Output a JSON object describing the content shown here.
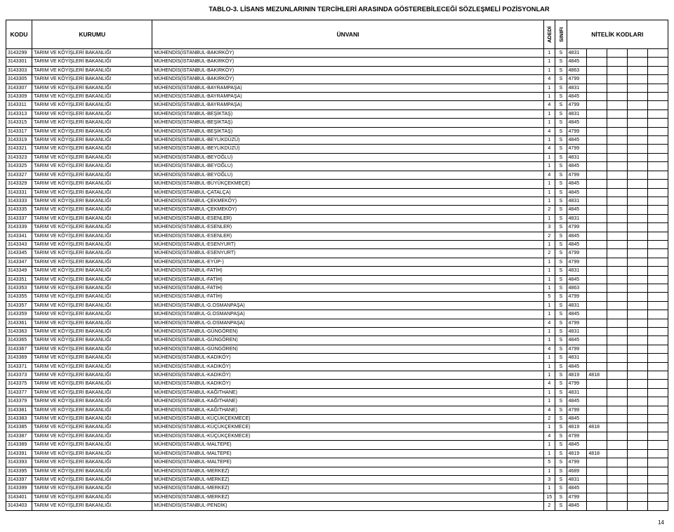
{
  "title": "TABLO-3. LİSANS MEZUNLARININ TERCİHLERİ ARASINDA GÖSTEREBİLECEĞİ SÖZLEŞMELİ POZİSYONLAR",
  "headers": {
    "kodu": "KODU",
    "kurumu": "KURUMU",
    "unvani": "ÜNVANI",
    "adedi": "ADEDİ",
    "sinifi": "SINIFI",
    "nitelik": "NİTELİK KODLARI"
  },
  "page_number": "14",
  "columns_align": [
    "left",
    "left",
    "left",
    "center",
    "center",
    "left",
    "left",
    "left",
    "left",
    "left"
  ],
  "rows": [
    [
      "3143299",
      "TARIM VE KÖYİŞLERİ BAKANLIĞI",
      "MÜHENDİS(İSTANBUL-BAKIRKÖY)",
      "1",
      "S",
      "4831",
      "",
      "",
      "",
      ""
    ],
    [
      "3143301",
      "TARIM VE KÖYİŞLERİ BAKANLIĞI",
      "MÜHENDİS(İSTANBUL-BAKIRKÖY)",
      "1",
      "S",
      "4845",
      "",
      "",
      "",
      ""
    ],
    [
      "3143303",
      "TARIM VE KÖYİŞLERİ BAKANLIĞI",
      "MÜHENDİS(İSTANBUL-BAKIRKÖY)",
      "1",
      "S",
      "4863",
      "",
      "",
      "",
      ""
    ],
    [
      "3143305",
      "TARIM VE KÖYİŞLERİ BAKANLIĞI",
      "MÜHENDİS(İSTANBUL-BAKIRKÖY)",
      "4",
      "S",
      "4799",
      "",
      "",
      "",
      ""
    ],
    [
      "3143307",
      "TARIM VE KÖYİŞLERİ BAKANLIĞI",
      "MÜHENDİS(İSTANBUL-BAYRAMPAŞA)",
      "1",
      "S",
      "4831",
      "",
      "",
      "",
      ""
    ],
    [
      "3143309",
      "TARIM VE KÖYİŞLERİ BAKANLIĞI",
      "MÜHENDİS(İSTANBUL-BAYRAMPAŞA)",
      "1",
      "S",
      "4845",
      "",
      "",
      "",
      ""
    ],
    [
      "3143311",
      "TARIM VE KÖYİŞLERİ BAKANLIĞI",
      "MÜHENDİS(İSTANBUL-BAYRAMPAŞA)",
      "4",
      "S",
      "4799",
      "",
      "",
      "",
      ""
    ],
    [
      "3143313",
      "TARIM VE KÖYİŞLERİ BAKANLIĞI",
      "MÜHENDİS(İSTANBUL-BEŞİKTAŞ)",
      "1",
      "S",
      "4831",
      "",
      "",
      "",
      ""
    ],
    [
      "3143315",
      "TARIM VE KÖYİŞLERİ BAKANLIĞI",
      "MÜHENDİS(İSTANBUL-BEŞİKTAŞ)",
      "1",
      "S",
      "4845",
      "",
      "",
      "",
      ""
    ],
    [
      "3143317",
      "TARIM VE KÖYİŞLERİ BAKANLIĞI",
      "MÜHENDİS(İSTANBUL-BEŞİKTAŞ)",
      "4",
      "S",
      "4799",
      "",
      "",
      "",
      ""
    ],
    [
      "3143319",
      "TARIM VE KÖYİŞLERİ BAKANLIĞI",
      "MÜHENDİS(İSTANBUL-BEYLİKDÜZÜ)",
      "1",
      "S",
      "4845",
      "",
      "",
      "",
      ""
    ],
    [
      "3143321",
      "TARIM VE KÖYİŞLERİ BAKANLIĞI",
      "MÜHENDİS(İSTANBUL-BEYLİKDÜZÜ)",
      "4",
      "S",
      "4799",
      "",
      "",
      "",
      ""
    ],
    [
      "3143323",
      "TARIM VE KÖYİŞLERİ BAKANLIĞI",
      "MÜHENDİS(İSTANBUL-BEYOĞLU)",
      "1",
      "S",
      "4831",
      "",
      "",
      "",
      ""
    ],
    [
      "3143325",
      "TARIM VE KÖYİŞLERİ BAKANLIĞI",
      "MÜHENDİS(İSTANBUL-BEYOĞLU)",
      "1",
      "S",
      "4845",
      "",
      "",
      "",
      ""
    ],
    [
      "3143327",
      "TARIM VE KÖYİŞLERİ BAKANLIĞI",
      "MÜHENDİS(İSTANBUL-BEYOĞLU)",
      "4",
      "S",
      "4799",
      "",
      "",
      "",
      ""
    ],
    [
      "3143329",
      "TARIM VE KÖYİŞLERİ BAKANLIĞI",
      "MÜHENDİS(İSTANBUL-BÜYÜKÇEKMEÇE)",
      "1",
      "S",
      "4845",
      "",
      "",
      "",
      ""
    ],
    [
      "3143331",
      "TARIM VE KÖYİŞLERİ BAKANLIĞI",
      "MÜHENDİS(İSTANBUL-ÇATALÇA)",
      "1",
      "S",
      "4845",
      "",
      "",
      "",
      ""
    ],
    [
      "3143333",
      "TARIM VE KÖYİŞLERİ BAKANLIĞI",
      "MÜHENDİS(İSTANBUL-ÇEKMEKÖY)",
      "1",
      "S",
      "4831",
      "",
      "",
      "",
      ""
    ],
    [
      "3143335",
      "TARIM VE KÖYİŞLERİ BAKANLIĞI",
      "MÜHENDİS(İSTANBUL-ÇEKMEKÖY)",
      "2",
      "S",
      "4845",
      "",
      "",
      "",
      ""
    ],
    [
      "3143337",
      "TARIM VE KÖYİŞLERİ BAKANLIĞI",
      "MÜHENDİS(İSTANBUL-ESENLER)",
      "1",
      "S",
      "4831",
      "",
      "",
      "",
      ""
    ],
    [
      "3143339",
      "TARIM VE KÖYİŞLERİ BAKANLIĞI",
      "MÜHENDİS(İSTANBUL-ESENLER)",
      "3",
      "S",
      "4799",
      "",
      "",
      "",
      ""
    ],
    [
      "3143341",
      "TARIM VE KÖYİŞLERİ BAKANLIĞI",
      "MÜHENDİS(İSTANBUL-ESENLER)",
      "2",
      "S",
      "4845",
      "",
      "",
      "",
      ""
    ],
    [
      "3143343",
      "TARIM VE KÖYİŞLERİ BAKANLIĞI",
      "MÜHENDİS(İSTANBUL-ESENYURT)",
      "1",
      "S",
      "4845",
      "",
      "",
      "",
      ""
    ],
    [
      "3143345",
      "TARIM VE KÖYİŞLERİ BAKANLIĞI",
      "MÜHENDİS(İSTANBUL-ESENYURT)",
      "2",
      "S",
      "4799",
      "",
      "",
      "",
      ""
    ],
    [
      "3143347",
      "TARIM VE KÖYİŞLERİ BAKANLIĞI",
      "MÜHENDİS(İSTANBUL-EYÜP-)",
      "1",
      "S",
      "4799",
      "",
      "",
      "",
      ""
    ],
    [
      "3143349",
      "TARIM VE KÖYİŞLERİ BAKANLIĞI",
      "MÜHENDİS(İSTANBUL-FATİH)",
      "1",
      "S",
      "4831",
      "",
      "",
      "",
      ""
    ],
    [
      "3143351",
      "TARIM VE KÖYİŞLERİ BAKANLIĞI",
      "MÜHENDİS(İSTANBUL-FATİH)",
      "1",
      "S",
      "4845",
      "",
      "",
      "",
      ""
    ],
    [
      "3143353",
      "TARIM VE KÖYİŞLERİ BAKANLIĞI",
      "MÜHENDİS(İSTANBUL-FATİH)",
      "1",
      "S",
      "4863",
      "",
      "",
      "",
      ""
    ],
    [
      "3143355",
      "TARIM VE KÖYİŞLERİ BAKANLIĞI",
      "MÜHENDİS(İSTANBUL-FATİH)",
      "5",
      "S",
      "4799",
      "",
      "",
      "",
      ""
    ],
    [
      "3143357",
      "TARIM VE KÖYİŞLERİ BAKANLIĞI",
      "MÜHENDİS(İSTANBUL-G.OSMANPAŞA)",
      "1",
      "S",
      "4831",
      "",
      "",
      "",
      ""
    ],
    [
      "3143359",
      "TARIM VE KÖYİŞLERİ BAKANLIĞI",
      "MÜHENDİS(İSTANBUL-G.OSMANPAŞA)",
      "1",
      "S",
      "4845",
      "",
      "",
      "",
      ""
    ],
    [
      "3143361",
      "TARIM VE KÖYİŞLERİ BAKANLIĞI",
      "MÜHENDİS(İSTANBUL-G.OSMANPAŞA)",
      "4",
      "S",
      "4799",
      "",
      "",
      "",
      ""
    ],
    [
      "3143363",
      "TARIM VE KÖYİŞLERİ BAKANLIĞI",
      "MÜHENDİS(İSTANBUL-GÜNGÖREN)",
      "1",
      "S",
      "4831",
      "",
      "",
      "",
      ""
    ],
    [
      "3143365",
      "TARIM VE KÖYİŞLERİ BAKANLIĞI",
      "MÜHENDİS(İSTANBUL-GÜNGÖREN)",
      "1",
      "S",
      "4845",
      "",
      "",
      "",
      ""
    ],
    [
      "3143367",
      "TARIM VE KÖYİŞLERİ BAKANLIĞI",
      "MÜHENDİS(İSTANBUL-GÜNGÖREN)",
      "4",
      "S",
      "4799",
      "",
      "",
      "",
      ""
    ],
    [
      "3143369",
      "TARIM VE KÖYİŞLERİ BAKANLIĞI",
      "MÜHENDİS(İSTANBUL-KADIKÖY)",
      "1",
      "S",
      "4831",
      "",
      "",
      "",
      ""
    ],
    [
      "3143371",
      "TARIM VE KÖYİŞLERİ BAKANLIĞI",
      "MÜHENDİS(İSTANBUL-KADIKÖY)",
      "1",
      "S",
      "4845",
      "",
      "",
      "",
      ""
    ],
    [
      "3143373",
      "TARIM VE KÖYİŞLERİ BAKANLIĞI",
      "MÜHENDİS(İSTANBUL-KADIKÖY)",
      "1",
      "S",
      "4819",
      "4818",
      "",
      "",
      ""
    ],
    [
      "3143375",
      "TARIM VE KÖYİŞLERİ BAKANLIĞI",
      "MÜHENDİS(İSTANBUL-KADIKÖY)",
      "4",
      "S",
      "4799",
      "",
      "",
      "",
      ""
    ],
    [
      "3143377",
      "TARIM VE KÖYİŞLERİ BAKANLIĞI",
      "MÜHENDİS(İSTANBUL-KAĞITHANE)",
      "1",
      "S",
      "4831",
      "",
      "",
      "",
      ""
    ],
    [
      "3143379",
      "TARIM VE KÖYİŞLERİ BAKANLIĞI",
      "MÜHENDİS(İSTANBUL-KAĞITHANE)",
      "1",
      "S",
      "4845",
      "",
      "",
      "",
      ""
    ],
    [
      "3143381",
      "TARIM VE KÖYİŞLERİ BAKANLIĞI",
      "MÜHENDİS(İSTANBUL-KAĞITHANE)",
      "4",
      "S",
      "4799",
      "",
      "",
      "",
      ""
    ],
    [
      "3143383",
      "TARIM VE KÖYİŞLERİ BAKANLIĞI",
      "MÜHENDİS(İSTANBUL-KÜÇÜKÇEKMECE)",
      "2",
      "S",
      "4845",
      "",
      "",
      "",
      ""
    ],
    [
      "3143385",
      "TARIM VE KÖYİŞLERİ BAKANLIĞI",
      "MÜHENDİS(İSTANBUL-KÜÇÜKÇEKMECE)",
      "1",
      "S",
      "4819",
      "4818",
      "",
      "",
      ""
    ],
    [
      "3143387",
      "TARIM VE KÖYİŞLERİ BAKANLIĞI",
      "MÜHENDİS(İSTANBUL-KÜÇÜKÇEKMECE)",
      "4",
      "S",
      "4799",
      "",
      "",
      "",
      ""
    ],
    [
      "3143389",
      "TARIM VE KÖYİŞLERİ BAKANLIĞI",
      "MÜHENDİS(İSTANBUL-MALTEPE)",
      "1",
      "S",
      "4845",
      "",
      "",
      "",
      ""
    ],
    [
      "3143391",
      "TARIM VE KÖYİŞLERİ BAKANLIĞI",
      "MÜHENDİS(İSTANBUL-MALTEPE)",
      "1",
      "S",
      "4819",
      "4818",
      "",
      "",
      ""
    ],
    [
      "3143393",
      "TARIM VE KÖYİŞLERİ BAKANLIĞI",
      "MÜHENDİS(İSTANBUL-MALTEPE)",
      "5",
      "S",
      "4799",
      "",
      "",
      "",
      ""
    ],
    [
      "3143395",
      "TARIM VE KÖYİŞLERİ BAKANLIĞI",
      "MÜHENDİS(İSTANBUL-MERKEZ)",
      "1",
      "S",
      "4689",
      "",
      "",
      "",
      ""
    ],
    [
      "3143397",
      "TARIM VE KÖYİŞLERİ BAKANLIĞI",
      "MÜHENDİS(İSTANBUL-MERKEZ)",
      "3",
      "S",
      "4831",
      "",
      "",
      "",
      ""
    ],
    [
      "3143399",
      "TARIM VE KÖYİŞLERİ BAKANLIĞI",
      "MÜHENDİS(İSTANBUL-MERKEZ)",
      "1",
      "S",
      "4845",
      "",
      "",
      "",
      ""
    ],
    [
      "3143401",
      "TARIM VE KÖYİŞLERİ BAKANLIĞI",
      "MÜHENDİS(İSTANBUL-MERKEZ)",
      "15",
      "S",
      "4799",
      "",
      "",
      "",
      ""
    ],
    [
      "3143403",
      "TARIM VE KÖYİŞLERİ BAKANLIĞI",
      "MÜHENDİS(İSTANBUL-PENDİK)",
      "2",
      "S",
      "4845",
      "",
      "",
      "",
      ""
    ]
  ]
}
